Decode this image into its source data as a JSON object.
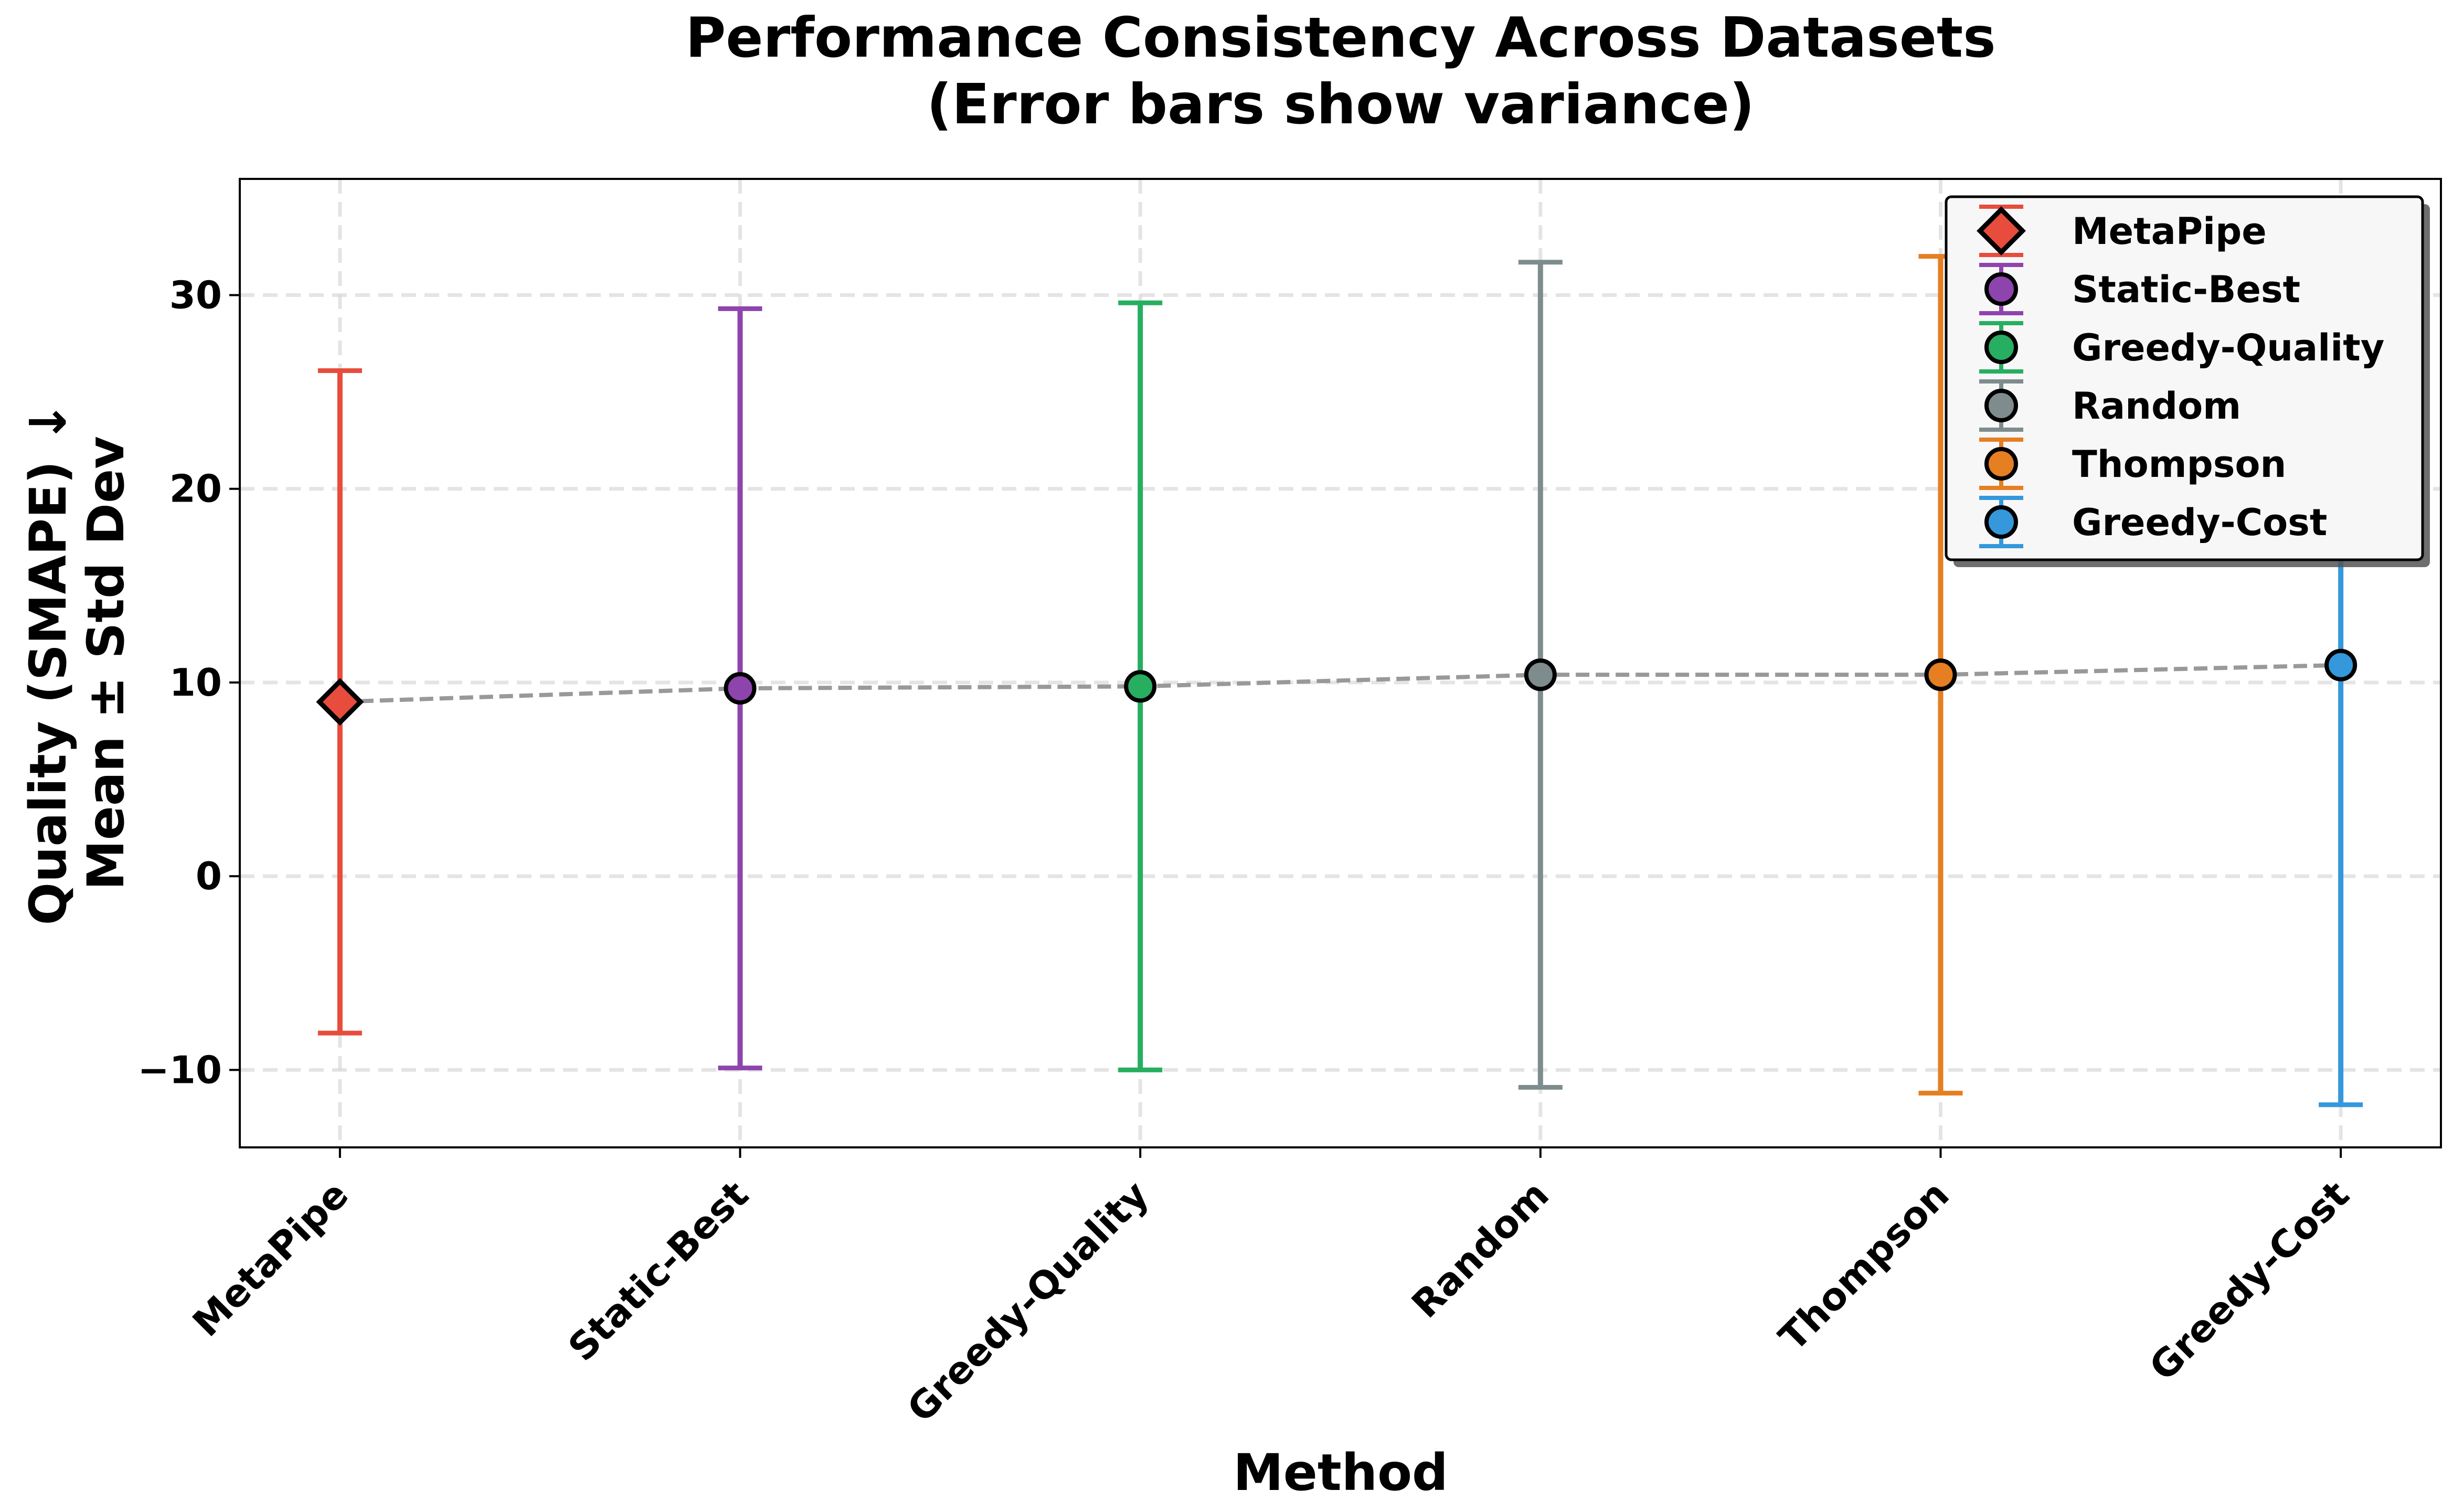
{
  "chart_data": {
    "type": "scatter",
    "title": [
      "Performance Consistency Across Datasets",
      "(Error bars show variance)"
    ],
    "xlabel": "Method",
    "ylabel": [
      "Quality (SMAPE) ↓",
      "Mean ± Std Dev"
    ],
    "categories": [
      "MetaPipe",
      "Static-Best",
      "Greedy-Quality",
      "Random",
      "Thompson",
      "Greedy-Cost"
    ],
    "series": [
      {
        "name": "MetaPipe",
        "mean": 9.0,
        "lower": -8.1,
        "upper": 26.1,
        "color": "#e74c3c",
        "marker": "diamond"
      },
      {
        "name": "Static-Best",
        "mean": 9.7,
        "lower": -9.9,
        "upper": 29.3,
        "color": "#8e44ad",
        "marker": "circle"
      },
      {
        "name": "Greedy-Quality",
        "mean": 9.8,
        "lower": -10.0,
        "upper": 29.6,
        "color": "#27ae60",
        "marker": "circle"
      },
      {
        "name": "Random",
        "mean": 10.4,
        "lower": -10.9,
        "upper": 31.7,
        "color": "#7f8c8d",
        "marker": "circle"
      },
      {
        "name": "Thompson",
        "mean": 10.4,
        "lower": -11.2,
        "upper": 32.0,
        "color": "#e67e22",
        "marker": "circle"
      },
      {
        "name": "Greedy-Cost",
        "mean": 10.9,
        "lower": -11.8,
        "upper": 33.6,
        "color": "#3498db",
        "marker": "circle"
      }
    ],
    "trend_line": {
      "color": "#999999",
      "style": "dashed"
    },
    "yticks": [
      -10,
      0,
      10,
      20,
      30
    ],
    "ylim": [
      -14,
      36
    ],
    "grid": true,
    "legend_position": "top-right"
  }
}
